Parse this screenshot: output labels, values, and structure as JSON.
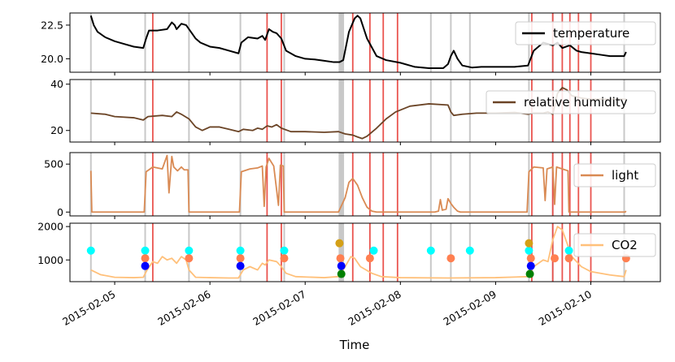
{
  "chart_data": {
    "type": "line",
    "xlabel": "Time",
    "x_tick_labels": [
      "2015-02-05",
      "2015-02-06",
      "2015-02-07",
      "2015-02-08",
      "2015-02-09",
      "2015-02-10"
    ],
    "x_tick_days": [
      5,
      6,
      7,
      8,
      9,
      10
    ],
    "x_range_days": [
      4.53,
      10.73
    ],
    "vertical_markers": {
      "gray": [
        4.75,
        5.32,
        5.78,
        6.32,
        6.78,
        7.36,
        7.37,
        7.38,
        7.39,
        7.4,
        8.32,
        8.53,
        8.73,
        9.35,
        9.6,
        10.35
      ],
      "red": [
        5.4,
        6.6,
        6.75,
        7.5,
        7.68,
        7.82,
        7.97,
        9.38,
        9.6,
        9.7,
        9.78,
        9.87,
        10.0
      ]
    },
    "panels": [
      {
        "name": "temperature",
        "legend": "temperature",
        "color": "#000000",
        "ylim": [
          19.0,
          23.4
        ],
        "yticks": [
          20.0,
          22.5
        ],
        "ytick_labels": [
          "20.0",
          "22.5"
        ],
        "points": [
          [
            4.75,
            23.2
          ],
          [
            4.78,
            22.5
          ],
          [
            4.82,
            22.0
          ],
          [
            4.9,
            21.6
          ],
          [
            5.0,
            21.3
          ],
          [
            5.1,
            21.1
          ],
          [
            5.2,
            20.9
          ],
          [
            5.3,
            20.8
          ],
          [
            5.33,
            21.5
          ],
          [
            5.36,
            22.1
          ],
          [
            5.45,
            22.1
          ],
          [
            5.55,
            22.2
          ],
          [
            5.6,
            22.7
          ],
          [
            5.63,
            22.5
          ],
          [
            5.65,
            22.2
          ],
          [
            5.7,
            22.6
          ],
          [
            5.75,
            22.5
          ],
          [
            5.8,
            22.0
          ],
          [
            5.85,
            21.5
          ],
          [
            5.9,
            21.2
          ],
          [
            6.0,
            20.9
          ],
          [
            6.1,
            20.8
          ],
          [
            6.2,
            20.6
          ],
          [
            6.3,
            20.4
          ],
          [
            6.33,
            21.2
          ],
          [
            6.4,
            21.6
          ],
          [
            6.5,
            21.5
          ],
          [
            6.55,
            21.7
          ],
          [
            6.58,
            21.4
          ],
          [
            6.62,
            22.2
          ],
          [
            6.66,
            22.0
          ],
          [
            6.7,
            21.9
          ],
          [
            6.75,
            21.5
          ],
          [
            6.8,
            20.6
          ],
          [
            6.9,
            20.2
          ],
          [
            7.0,
            20.0
          ],
          [
            7.1,
            19.95
          ],
          [
            7.2,
            19.85
          ],
          [
            7.3,
            19.75
          ],
          [
            7.36,
            19.75
          ],
          [
            7.4,
            19.9
          ],
          [
            7.46,
            22.0
          ],
          [
            7.52,
            23.0
          ],
          [
            7.55,
            23.2
          ],
          [
            7.58,
            23.0
          ],
          [
            7.65,
            21.5
          ],
          [
            7.75,
            20.2
          ],
          [
            7.85,
            19.9
          ],
          [
            8.0,
            19.7
          ],
          [
            8.15,
            19.4
          ],
          [
            8.3,
            19.3
          ],
          [
            8.45,
            19.3
          ],
          [
            8.5,
            19.6
          ],
          [
            8.53,
            20.2
          ],
          [
            8.56,
            20.6
          ],
          [
            8.6,
            20.0
          ],
          [
            8.65,
            19.5
          ],
          [
            8.75,
            19.35
          ],
          [
            8.85,
            19.4
          ],
          [
            9.0,
            19.4
          ],
          [
            9.2,
            19.4
          ],
          [
            9.34,
            19.5
          ],
          [
            9.4,
            20.6
          ],
          [
            9.5,
            21.2
          ],
          [
            9.6,
            21.0
          ],
          [
            9.65,
            21.2
          ],
          [
            9.7,
            20.8
          ],
          [
            9.78,
            21.0
          ],
          [
            9.85,
            20.6
          ],
          [
            9.9,
            20.5
          ],
          [
            10.0,
            20.4
          ],
          [
            10.1,
            20.3
          ],
          [
            10.2,
            20.2
          ],
          [
            10.3,
            20.2
          ],
          [
            10.35,
            20.2
          ],
          [
            10.37,
            20.5
          ]
        ]
      },
      {
        "name": "relative humidity",
        "legend": "relative humidity",
        "color": "#6b4426",
        "ylim": [
          15.0,
          42.0
        ],
        "yticks": [
          20,
          40
        ],
        "ytick_labels": [
          "20",
          "40"
        ],
        "points": [
          [
            4.75,
            27.5
          ],
          [
            4.9,
            27.0
          ],
          [
            5.0,
            26.0
          ],
          [
            5.2,
            25.5
          ],
          [
            5.3,
            24.5
          ],
          [
            5.35,
            26.0
          ],
          [
            5.5,
            26.5
          ],
          [
            5.6,
            26.0
          ],
          [
            5.65,
            28.0
          ],
          [
            5.7,
            27.0
          ],
          [
            5.78,
            25.0
          ],
          [
            5.85,
            21.5
          ],
          [
            5.92,
            20.0
          ],
          [
            6.0,
            21.5
          ],
          [
            6.1,
            21.5
          ],
          [
            6.2,
            20.5
          ],
          [
            6.3,
            19.5
          ],
          [
            6.35,
            20.5
          ],
          [
            6.45,
            20.0
          ],
          [
            6.5,
            21.0
          ],
          [
            6.55,
            20.5
          ],
          [
            6.6,
            22.0
          ],
          [
            6.65,
            21.5
          ],
          [
            6.7,
            22.5
          ],
          [
            6.75,
            21.0
          ],
          [
            6.85,
            19.5
          ],
          [
            7.0,
            19.5
          ],
          [
            7.2,
            19.2
          ],
          [
            7.35,
            19.5
          ],
          [
            7.42,
            18.5
          ],
          [
            7.5,
            18.0
          ],
          [
            7.55,
            17.2
          ],
          [
            7.6,
            16.5
          ],
          [
            7.65,
            17.5
          ],
          [
            7.75,
            21.0
          ],
          [
            7.85,
            25.0
          ],
          [
            7.95,
            28.0
          ],
          [
            8.1,
            30.5
          ],
          [
            8.3,
            31.5
          ],
          [
            8.5,
            31.0
          ],
          [
            8.53,
            28.0
          ],
          [
            8.56,
            26.5
          ],
          [
            8.65,
            27.0
          ],
          [
            8.8,
            27.5
          ],
          [
            9.0,
            27.5
          ],
          [
            9.2,
            27.8
          ],
          [
            9.34,
            27.0
          ],
          [
            9.4,
            27.5
          ],
          [
            9.5,
            27.5
          ],
          [
            9.55,
            28.0
          ],
          [
            9.6,
            27.0
          ],
          [
            9.65,
            36.0
          ],
          [
            9.7,
            38.5
          ],
          [
            9.75,
            37.5
          ],
          [
            9.8,
            35.0
          ],
          [
            9.9,
            34.0
          ],
          [
            10.0,
            33.5
          ],
          [
            10.2,
            33.5
          ],
          [
            10.37,
            33.5
          ]
        ]
      },
      {
        "name": "light",
        "legend": "light",
        "color": "#d98a53",
        "ylim": [
          -40,
          620
        ],
        "yticks": [
          0,
          500
        ],
        "ytick_labels": [
          "0",
          "500"
        ],
        "points": [
          [
            4.75,
            430
          ],
          [
            4.76,
            0
          ],
          [
            5.31,
            0
          ],
          [
            5.33,
            420
          ],
          [
            5.4,
            470
          ],
          [
            5.5,
            450
          ],
          [
            5.55,
            590
          ],
          [
            5.57,
            200
          ],
          [
            5.6,
            580
          ],
          [
            5.62,
            470
          ],
          [
            5.66,
            430
          ],
          [
            5.7,
            470
          ],
          [
            5.73,
            440
          ],
          [
            5.77,
            440
          ],
          [
            5.78,
            0
          ],
          [
            6.31,
            0
          ],
          [
            6.33,
            420
          ],
          [
            6.42,
            450
          ],
          [
            6.5,
            460
          ],
          [
            6.55,
            480
          ],
          [
            6.57,
            60
          ],
          [
            6.59,
            470
          ],
          [
            6.62,
            560
          ],
          [
            6.67,
            480
          ],
          [
            6.72,
            70
          ],
          [
            6.74,
            490
          ],
          [
            6.77,
            480
          ],
          [
            6.78,
            0
          ],
          [
            7.35,
            0
          ],
          [
            7.42,
            150
          ],
          [
            7.46,
            310
          ],
          [
            7.5,
            350
          ],
          [
            7.55,
            280
          ],
          [
            7.6,
            150
          ],
          [
            7.65,
            50
          ],
          [
            7.7,
            10
          ],
          [
            7.75,
            0
          ],
          [
            8.36,
            0
          ],
          [
            8.4,
            10
          ],
          [
            8.42,
            130
          ],
          [
            8.44,
            20
          ],
          [
            8.48,
            30
          ],
          [
            8.5,
            140
          ],
          [
            8.53,
            90
          ],
          [
            8.56,
            50
          ],
          [
            8.6,
            10
          ],
          [
            8.63,
            0
          ],
          [
            9.33,
            0
          ],
          [
            9.35,
            420
          ],
          [
            9.4,
            470
          ],
          [
            9.5,
            460
          ],
          [
            9.52,
            120
          ],
          [
            9.54,
            450
          ],
          [
            9.6,
            470
          ],
          [
            9.62,
            80
          ],
          [
            9.64,
            470
          ],
          [
            9.7,
            450
          ],
          [
            9.76,
            430
          ],
          [
            9.77,
            0
          ],
          [
            10.36,
            0
          ],
          [
            10.37,
            10
          ]
        ]
      },
      {
        "name": "CO2",
        "legend": "CO2",
        "color": "#ffc07a",
        "ylim": [
          350,
          2100
        ],
        "yticks": [
          1000,
          2000
        ],
        "ytick_labels": [
          "1000",
          "2000"
        ],
        "points": [
          [
            4.75,
            700
          ],
          [
            4.85,
            560
          ],
          [
            5.0,
            480
          ],
          [
            5.2,
            470
          ],
          [
            5.3,
            480
          ],
          [
            5.34,
            700
          ],
          [
            5.4,
            950
          ],
          [
            5.45,
            900
          ],
          [
            5.5,
            1100
          ],
          [
            5.55,
            1000
          ],
          [
            5.6,
            1050
          ],
          [
            5.65,
            900
          ],
          [
            5.7,
            1100
          ],
          [
            5.75,
            1000
          ],
          [
            5.78,
            700
          ],
          [
            5.85,
            480
          ],
          [
            6.0,
            470
          ],
          [
            6.2,
            460
          ],
          [
            6.3,
            460
          ],
          [
            6.35,
            700
          ],
          [
            6.42,
            800
          ],
          [
            6.5,
            700
          ],
          [
            6.55,
            900
          ],
          [
            6.58,
            850
          ],
          [
            6.62,
            1000
          ],
          [
            6.7,
            950
          ],
          [
            6.75,
            800
          ],
          [
            6.8,
            600
          ],
          [
            6.9,
            500
          ],
          [
            7.2,
            470
          ],
          [
            7.35,
            500
          ],
          [
            7.42,
            800
          ],
          [
            7.48,
            1100
          ],
          [
            7.52,
            1050
          ],
          [
            7.58,
            800
          ],
          [
            7.7,
            600
          ],
          [
            7.8,
            500
          ],
          [
            8.0,
            470
          ],
          [
            8.5,
            460
          ],
          [
            9.0,
            470
          ],
          [
            9.34,
            500
          ],
          [
            9.4,
            800
          ],
          [
            9.5,
            1000
          ],
          [
            9.55,
            950
          ],
          [
            9.6,
            1600
          ],
          [
            9.65,
            2000
          ],
          [
            9.7,
            1900
          ],
          [
            9.75,
            1500
          ],
          [
            9.8,
            1100
          ],
          [
            9.9,
            800
          ],
          [
            10.0,
            650
          ],
          [
            10.2,
            550
          ],
          [
            10.35,
            500
          ],
          [
            10.37,
            700
          ]
        ],
        "markers": [
          {
            "x": 4.75,
            "y": 1280,
            "color": "#00ffff"
          },
          {
            "x": 5.32,
            "y": 1280,
            "color": "#00ffff"
          },
          {
            "x": 5.78,
            "y": 1280,
            "color": "#00ffff"
          },
          {
            "x": 6.32,
            "y": 1280,
            "color": "#00ffff"
          },
          {
            "x": 6.78,
            "y": 1280,
            "color": "#00ffff"
          },
          {
            "x": 7.72,
            "y": 1280,
            "color": "#00ffff"
          },
          {
            "x": 8.32,
            "y": 1280,
            "color": "#00ffff"
          },
          {
            "x": 8.73,
            "y": 1280,
            "color": "#00ffff"
          },
          {
            "x": 9.35,
            "y": 1280,
            "color": "#00ffff"
          },
          {
            "x": 9.77,
            "y": 1280,
            "color": "#00ffff"
          },
          {
            "x": 5.32,
            "y": 1050,
            "color": "#ff7f50"
          },
          {
            "x": 5.78,
            "y": 1050,
            "color": "#ff7f50"
          },
          {
            "x": 6.32,
            "y": 1050,
            "color": "#ff7f50"
          },
          {
            "x": 6.78,
            "y": 1050,
            "color": "#ff7f50"
          },
          {
            "x": 7.37,
            "y": 1050,
            "color": "#ff7f50"
          },
          {
            "x": 7.68,
            "y": 1050,
            "color": "#ff7f50"
          },
          {
            "x": 8.53,
            "y": 1050,
            "color": "#ff7f50"
          },
          {
            "x": 9.37,
            "y": 1050,
            "color": "#ff7f50"
          },
          {
            "x": 9.62,
            "y": 1050,
            "color": "#ff7f50"
          },
          {
            "x": 9.77,
            "y": 1050,
            "color": "#ff7f50"
          },
          {
            "x": 10.37,
            "y": 1050,
            "color": "#ff7f50"
          },
          {
            "x": 7.36,
            "y": 1500,
            "color": "#d4a017"
          },
          {
            "x": 9.35,
            "y": 1500,
            "color": "#d4a017"
          },
          {
            "x": 5.32,
            "y": 820,
            "color": "#0000ff"
          },
          {
            "x": 6.32,
            "y": 820,
            "color": "#0000ff"
          },
          {
            "x": 7.38,
            "y": 820,
            "color": "#0000ff"
          },
          {
            "x": 9.37,
            "y": 820,
            "color": "#0000ff"
          },
          {
            "x": 7.38,
            "y": 580,
            "color": "#008000"
          },
          {
            "x": 9.36,
            "y": 580,
            "color": "#008000"
          }
        ]
      }
    ]
  }
}
